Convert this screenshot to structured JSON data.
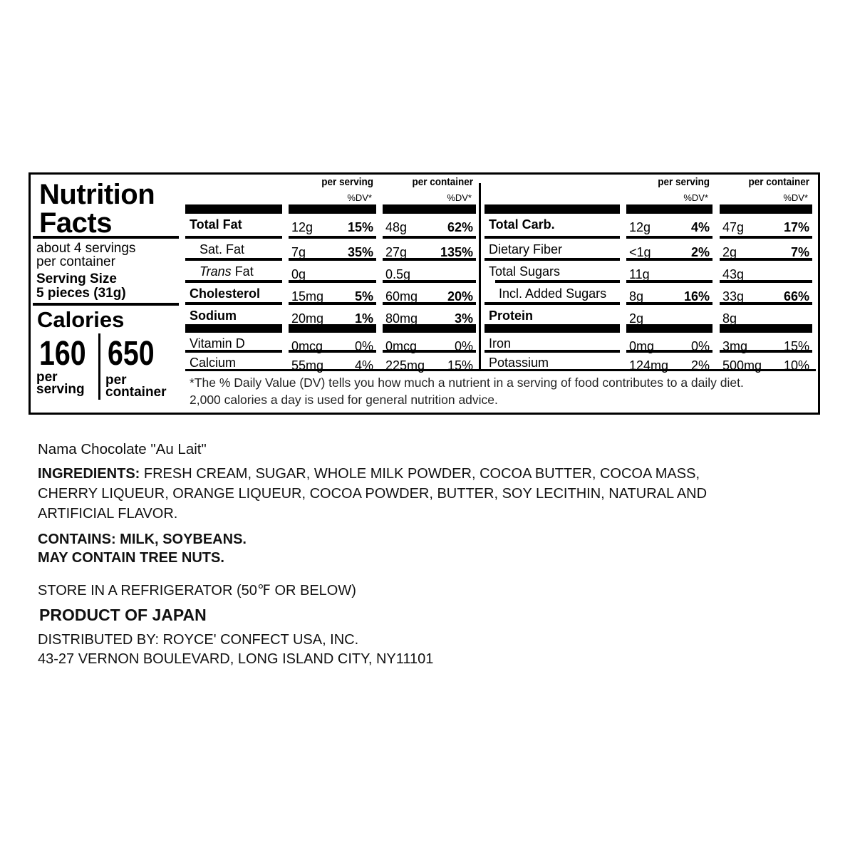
{
  "panel": {
    "title_line1": "Nutrition",
    "title_line2": "Facts",
    "servings_line1": "about 4 servings",
    "servings_line2": "per container",
    "serving_size_label": "Serving Size",
    "serving_size_value": "5 pieces (31g)",
    "calories_label": "Calories",
    "calories_per_serving": "160",
    "calories_per_container": "650",
    "per_serving_label1": "per",
    "per_serving_label2": "serving",
    "per_container_label1": "per",
    "per_container_label2": "container"
  },
  "headers": {
    "per_serving": "per serving",
    "per_container": "per container",
    "dv": "%DV*"
  },
  "left_rows": [
    {
      "label": "Total Fat",
      "bold": true,
      "indent": 0,
      "s_amt": "12g",
      "s_dv": "15%",
      "c_amt": "48g",
      "c_dv": "62%",
      "dv_bold": true
    },
    {
      "label": "Sat. Fat",
      "bold": false,
      "indent": 1,
      "s_amt": "7g",
      "s_dv": "35%",
      "c_amt": "27g",
      "c_dv": "135%",
      "dv_bold": true
    },
    {
      "label": "Trans Fat",
      "italic_prefix": "Trans",
      "label_rest": " Fat",
      "bold": false,
      "indent": 2,
      "s_amt": "0g",
      "s_dv": "",
      "c_amt": "0.5g",
      "c_dv": ""
    },
    {
      "label": "Cholesterol",
      "bold": true,
      "indent": 0,
      "s_amt": "15mg",
      "s_dv": "5%",
      "c_amt": "60mg",
      "c_dv": "20%",
      "dv_bold": true
    },
    {
      "label": "Sodium",
      "bold": true,
      "indent": 0,
      "s_amt": "20mg",
      "s_dv": "1%",
      "c_amt": "80mg",
      "c_dv": "3%",
      "dv_bold": true
    },
    {
      "label": "Vitamin D",
      "bold": false,
      "indent": 0,
      "s_amt": "0mcg",
      "s_dv": "0%",
      "c_amt": "0mcg",
      "c_dv": "0%",
      "dv_bold": false
    },
    {
      "label": "Calcium",
      "bold": false,
      "indent": 0,
      "s_amt": "55mg",
      "s_dv": "4%",
      "c_amt": "225mg",
      "c_dv": "15%",
      "dv_bold": false
    }
  ],
  "right_rows": [
    {
      "label": "Total Carb.",
      "bold": true,
      "indent": 0,
      "s_amt": "12g",
      "s_dv": "4%",
      "c_amt": "47g",
      "c_dv": "17%",
      "dv_bold": true
    },
    {
      "label": "Dietary Fiber",
      "bold": false,
      "indent": 0,
      "s_amt": "<1g",
      "s_dv": "2%",
      "c_amt": "2g",
      "c_dv": "7%",
      "dv_bold": true
    },
    {
      "label": "Total Sugars",
      "bold": false,
      "indent": 0,
      "s_amt": "11g",
      "s_dv": "",
      "c_amt": "43g",
      "c_dv": ""
    },
    {
      "label": "Incl. Added Sugars",
      "bold": false,
      "indent": 1,
      "s_amt": "8g",
      "s_dv": "16%",
      "c_amt": "33g",
      "c_dv": "66%",
      "dv_bold": true
    },
    {
      "label": "Protein",
      "bold": true,
      "indent": 0,
      "s_amt": "2g",
      "s_dv": "",
      "c_amt": "8g",
      "c_dv": ""
    },
    {
      "label": "Iron",
      "bold": false,
      "indent": 0,
      "s_amt": "0mg",
      "s_dv": "0%",
      "c_amt": "3mg",
      "c_dv": "15%",
      "dv_bold": false
    },
    {
      "label": "Potassium",
      "bold": false,
      "indent": 0,
      "s_amt": "124mg",
      "s_dv": "2%",
      "c_amt": "500mg",
      "c_dv": "10%",
      "dv_bold": false
    }
  ],
  "footnote": {
    "line1": "*The % Daily Value (DV) tells you how much a nutrient in a serving of food contributes to a daily diet.",
    "line2": "2,000 calories a day is used for general nutrition advice."
  },
  "product_name": "Nama Chocolate \"Au Lait\"",
  "ingredients": {
    "label": "INGREDIENTS:",
    "lines": [
      " FRESH CREAM, SUGAR, WHOLE MILK POWDER, COCOA BUTTER, COCOA MASS,",
      "CHERRY LIQUEUR, ORANGE LIQUEUR, COCOA POWDER, BUTTER, SOY LECITHIN, NATURAL AND",
      "ARTIFICIAL FLAVOR."
    ]
  },
  "allergens": {
    "contains": "CONTAINS: MILK, SOYBEANS.",
    "may_contain": "MAY CONTAIN TREE NUTS."
  },
  "storage": "STORE IN A REFRIGERATOR (50℉ OR BELOW)",
  "origin": "PRODUCT OF JAPAN",
  "distributor": {
    "line1": "DISTRIBUTED BY: ROYCE' CONFECT USA, INC.",
    "line2": "43-27 VERNON BOULEVARD, LONG ISLAND CITY, NY11101"
  }
}
